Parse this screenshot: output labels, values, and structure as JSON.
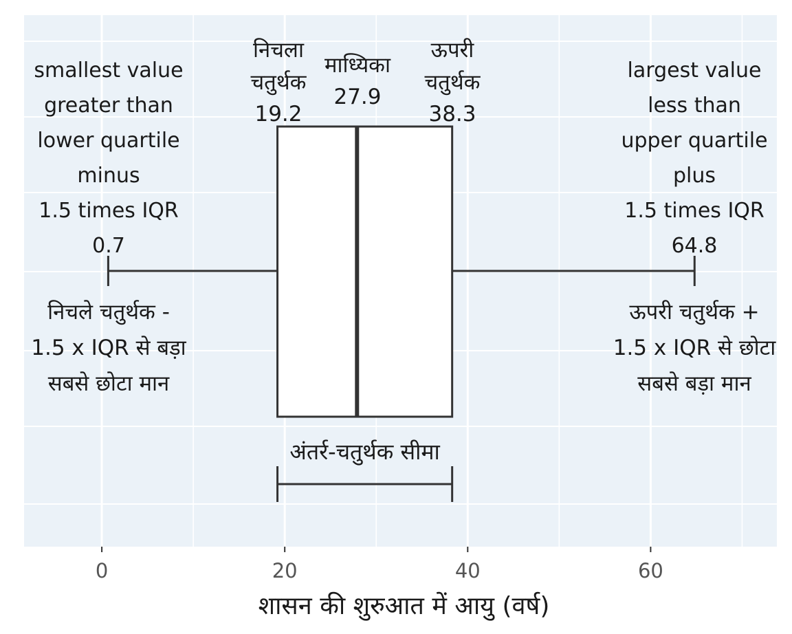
{
  "chart_data": {
    "type": "boxplot",
    "xlabel": "शासन की शुरुआत में आयु (वर्ष)",
    "xlim": [
      -8.5,
      73.8
    ],
    "x_ticks": [
      0,
      20,
      40,
      60
    ],
    "grid": true,
    "colors": {
      "panel": "#ebf2f8",
      "grid": "#ffffff",
      "box_fill": "#ffffff",
      "stroke": "#333333"
    },
    "summary": {
      "lower_whisker": 0.7,
      "lower_quartile": 19.2,
      "median": 27.9,
      "upper_quartile": 38.3,
      "upper_whisker": 64.8
    },
    "annotations": {
      "lower_quartile_title": [
        "निचला",
        "चतुर्थक"
      ],
      "lower_quartile_value": "19.2",
      "median_title": "माध्यिका",
      "median_value": "27.9",
      "upper_quartile_title": [
        "ऊपरी",
        "चतुर्थक"
      ],
      "upper_quartile_value": "38.3",
      "lower_whisker_english": [
        "smallest value",
        "greater than",
        "lower quartile",
        "minus",
        "1.5 times IQR"
      ],
      "lower_whisker_value": "0.7",
      "lower_whisker_hindi": [
        "निचले चतुर्थक -",
        "1.5 x IQR से बड़ा",
        "सबसे छोटा मान"
      ],
      "upper_whisker_english": [
        "largest value",
        "less than",
        "upper quartile",
        "plus",
        "1.5 times IQR"
      ],
      "upper_whisker_value": "64.8",
      "upper_whisker_hindi": [
        "ऊपरी चतुर्थक +",
        "1.5 x IQR से छोटा",
        "सबसे बड़ा मान"
      ],
      "iqr_label": "अंतर्र-चतुर्थक सीमा"
    }
  }
}
